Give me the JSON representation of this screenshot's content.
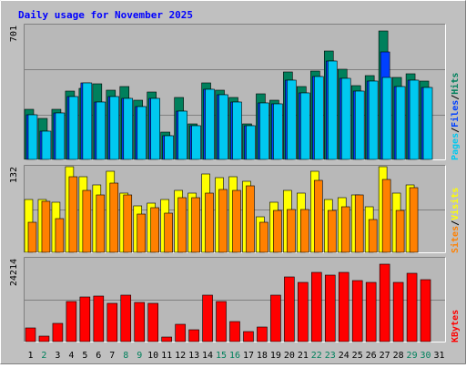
{
  "title": "Daily usage for November 2025",
  "colors": {
    "background": "#c0c0c0",
    "panel": "#b8b8b8",
    "border_dark": "#808080",
    "border_light": "#ffffff",
    "gridline": "#808080",
    "title": "#0000ff",
    "hits": "#00805c",
    "files": "#0040ff",
    "pages": "#00c8f0",
    "visits": "#ffff00",
    "sites": "#ff8000",
    "kbytes": "#ff0000",
    "day_weekday": "#000000",
    "day_weekend": "#00805c"
  },
  "chart_data": [
    {
      "type": "bar",
      "panel": "hits-files-pages",
      "max_label": "701",
      "ylim": [
        0,
        701
      ],
      "legend": [
        {
          "name": "Pages",
          "color": "#00c8f0"
        },
        {
          "name": "/",
          "color": "#000000"
        },
        {
          "name": "Files",
          "color": "#0040ff"
        },
        {
          "name": "/",
          "color": "#000000"
        },
        {
          "name": "Hits",
          "color": "#00805c"
        }
      ],
      "categories": [
        "1",
        "2",
        "3",
        "4",
        "5",
        "6",
        "7",
        "8",
        "9",
        "10",
        "11",
        "12",
        "13",
        "14",
        "15",
        "16",
        "17",
        "18",
        "19",
        "20",
        "21",
        "22",
        "23",
        "24",
        "25",
        "26",
        "27",
        "28",
        "29",
        "30",
        "31"
      ],
      "series": [
        {
          "name": "Hits",
          "values": [
            260,
            215,
            260,
            355,
            370,
            395,
            360,
            380,
            310,
            350,
            140,
            320,
            185,
            400,
            360,
            320,
            185,
            340,
            310,
            455,
            380,
            460,
            565,
            470,
            385,
            435,
            670,
            425,
            445,
            405,
            0
          ]
        },
        {
          "name": "Files",
          "values": [
            230,
            145,
            240,
            325,
            400,
            300,
            325,
            315,
            275,
            315,
            125,
            250,
            175,
            365,
            335,
            300,
            175,
            295,
            290,
            410,
            345,
            430,
            510,
            420,
            355,
            405,
            560,
            380,
            410,
            375,
            0
          ]
        },
        {
          "name": "Pages",
          "values": [
            230,
            145,
            240,
            325,
            400,
            300,
            325,
            315,
            275,
            315,
            125,
            250,
            175,
            365,
            335,
            300,
            175,
            295,
            290,
            410,
            345,
            430,
            510,
            420,
            355,
            405,
            425,
            380,
            410,
            375,
            0
          ]
        }
      ]
    },
    {
      "type": "bar",
      "panel": "visits-sites",
      "max_label": "132",
      "ylim": [
        0,
        132
      ],
      "legend": [
        {
          "name": "Sites",
          "color": "#ff8000"
        },
        {
          "name": "/",
          "color": "#000000"
        },
        {
          "name": "Visits",
          "color": "#ffff00"
        }
      ],
      "categories": [
        "1",
        "2",
        "3",
        "4",
        "5",
        "6",
        "7",
        "8",
        "9",
        "10",
        "11",
        "12",
        "13",
        "14",
        "15",
        "16",
        "17",
        "18",
        "19",
        "20",
        "21",
        "22",
        "23",
        "24",
        "25",
        "26",
        "27",
        "28",
        "29",
        "30",
        "31"
      ],
      "series": [
        {
          "name": "Visits",
          "values": [
            80,
            81,
            77,
            130,
            115,
            103,
            123,
            91,
            71,
            75,
            81,
            95,
            91,
            120,
            114,
            115,
            109,
            54,
            77,
            94,
            90,
            123,
            81,
            84,
            88,
            69,
            131,
            90,
            103,
            0,
            0
          ]
        },
        {
          "name": "Sites",
          "values": [
            46,
            78,
            51,
            115,
            95,
            87,
            105,
            88,
            58,
            68,
            60,
            84,
            84,
            90,
            96,
            94,
            102,
            46,
            64,
            65,
            65,
            110,
            64,
            69,
            87,
            50,
            111,
            64,
            99,
            0,
            0
          ]
        }
      ]
    },
    {
      "type": "bar",
      "panel": "kbytes",
      "max_label": "24214",
      "ylim": [
        0,
        24214
      ],
      "legend": [
        {
          "name": "KBytes",
          "color": "#ff0000"
        }
      ],
      "categories": [
        "1",
        "2",
        "3",
        "4",
        "5",
        "6",
        "7",
        "8",
        "9",
        "10",
        "11",
        "12",
        "13",
        "14",
        "15",
        "16",
        "17",
        "18",
        "19",
        "20",
        "21",
        "22",
        "23",
        "24",
        "25",
        "26",
        "27",
        "28",
        "29",
        "30",
        "31"
      ],
      "series": [
        {
          "name": "KBytes",
          "values": [
            4000,
            1500,
            5200,
            11500,
            13000,
            13200,
            11000,
            13500,
            11200,
            11000,
            1200,
            5000,
            3500,
            13500,
            11600,
            5700,
            2800,
            4100,
            13500,
            18600,
            17100,
            19900,
            19200,
            20100,
            17700,
            17000,
            22300,
            17200,
            19800,
            17800,
            0
          ]
        }
      ]
    }
  ],
  "days": [
    {
      "label": "1",
      "weekend": false
    },
    {
      "label": "2",
      "weekend": true
    },
    {
      "label": "3",
      "weekend": false
    },
    {
      "label": "4",
      "weekend": false
    },
    {
      "label": "5",
      "weekend": false
    },
    {
      "label": "6",
      "weekend": false
    },
    {
      "label": "7",
      "weekend": false
    },
    {
      "label": "8",
      "weekend": true
    },
    {
      "label": "9",
      "weekend": true
    },
    {
      "label": "10",
      "weekend": false
    },
    {
      "label": "11",
      "weekend": false
    },
    {
      "label": "12",
      "weekend": false
    },
    {
      "label": "13",
      "weekend": false
    },
    {
      "label": "14",
      "weekend": false
    },
    {
      "label": "15",
      "weekend": true
    },
    {
      "label": "16",
      "weekend": true
    },
    {
      "label": "17",
      "weekend": false
    },
    {
      "label": "18",
      "weekend": false
    },
    {
      "label": "19",
      "weekend": false
    },
    {
      "label": "20",
      "weekend": false
    },
    {
      "label": "21",
      "weekend": false
    },
    {
      "label": "22",
      "weekend": true
    },
    {
      "label": "23",
      "weekend": true
    },
    {
      "label": "24",
      "weekend": false
    },
    {
      "label": "25",
      "weekend": false
    },
    {
      "label": "26",
      "weekend": false
    },
    {
      "label": "27",
      "weekend": false
    },
    {
      "label": "28",
      "weekend": false
    },
    {
      "label": "29",
      "weekend": true
    },
    {
      "label": "30",
      "weekend": true
    },
    {
      "label": "31",
      "weekend": false
    }
  ]
}
